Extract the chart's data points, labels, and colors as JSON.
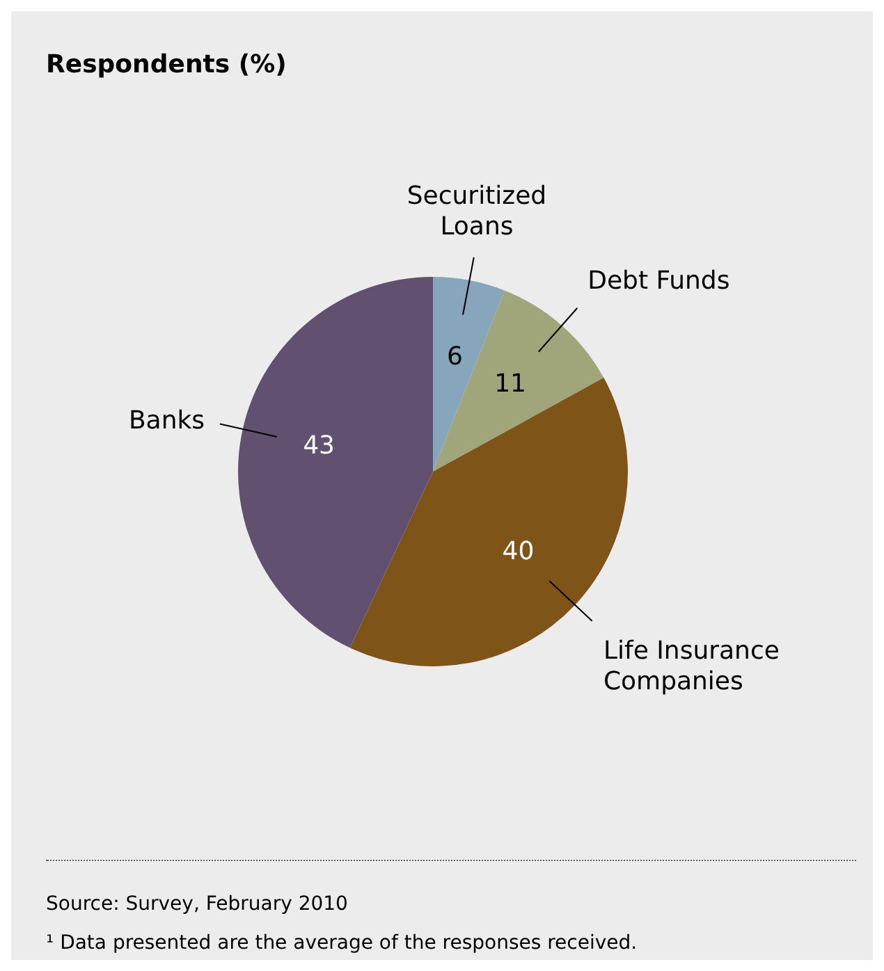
{
  "chart_data": {
    "type": "pie",
    "title": "Respondents (%)",
    "categories": [
      "Securitized Loans",
      "Debt Funds",
      "Life Insurance Companies",
      "Banks"
    ],
    "values": [
      6,
      11,
      40,
      43
    ],
    "colors": [
      "#87a5bb",
      "#a0a57a",
      "#7f5419",
      "#625070"
    ],
    "data_labels": true,
    "annotations": [
      "Source: Survey, February 2010",
      "¹ Data presented are the average of the responses received."
    ]
  }
}
